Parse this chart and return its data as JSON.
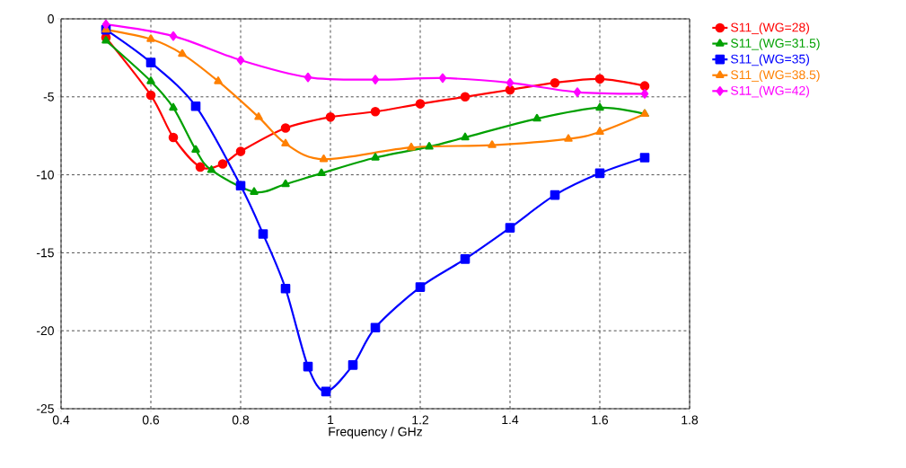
{
  "chart_data": {
    "type": "line",
    "xlabel": "Frequency / GHz",
    "xlim": [
      0.4,
      1.8
    ],
    "xticks": [
      0.4,
      0.6,
      0.8,
      1,
      1.2,
      1.4,
      1.6,
      1.8
    ],
    "ylim": [
      -25,
      0
    ],
    "yticks": [
      -25,
      -20,
      -15,
      -10,
      -5,
      0
    ],
    "grid": true,
    "legend": "top right",
    "series": [
      {
        "name": "S11_(WG=28)",
        "color": "#ff0000",
        "marker": "circle",
        "x": [
          0.5,
          0.6,
          0.65,
          0.71,
          0.76,
          0.8,
          0.9,
          1.0,
          1.1,
          1.2,
          1.3,
          1.4,
          1.5,
          1.6,
          1.7
        ],
        "values": [
          -1.2,
          -4.9,
          -7.6,
          -9.5,
          -9.3,
          -8.5,
          -7.0,
          -6.3,
          -5.95,
          -5.45,
          -5.0,
          -4.55,
          -4.1,
          -3.85,
          -4.3
        ]
      },
      {
        "name": "S11_(WG=31.5)",
        "color": "#00a000",
        "marker": "triangle",
        "x": [
          0.5,
          0.6,
          0.65,
          0.7,
          0.735,
          0.83,
          0.9,
          0.98,
          1.1,
          1.22,
          1.3,
          1.46,
          1.6,
          1.7
        ],
        "values": [
          -1.4,
          -4.0,
          -5.7,
          -8.4,
          -9.7,
          -11.1,
          -10.6,
          -9.9,
          -8.9,
          -8.2,
          -7.6,
          -6.4,
          -5.7,
          -6.1
        ]
      },
      {
        "name": "S11_(WG=35)",
        "color": "#0000ff",
        "marker": "square",
        "x": [
          0.5,
          0.6,
          0.7,
          0.8,
          0.85,
          0.9,
          0.95,
          0.99,
          1.05,
          1.1,
          1.2,
          1.3,
          1.4,
          1.5,
          1.6,
          1.7
        ],
        "values": [
          -0.7,
          -2.8,
          -5.6,
          -10.7,
          -13.8,
          -17.3,
          -22.3,
          -23.9,
          -22.2,
          -19.8,
          -17.2,
          -15.4,
          -13.4,
          -11.3,
          -9.9,
          -8.9
        ]
      },
      {
        "name": "S11_(WG=38.5)",
        "color": "#ff8000",
        "marker": "triangle",
        "x": [
          0.5,
          0.6,
          0.67,
          0.75,
          0.84,
          0.9,
          0.985,
          1.18,
          1.36,
          1.53,
          1.6,
          1.7
        ],
        "values": [
          -0.7,
          -1.3,
          -2.25,
          -4.0,
          -6.3,
          -8.0,
          -9.0,
          -8.25,
          -8.1,
          -7.7,
          -7.25,
          -6.1
        ]
      },
      {
        "name": "S11_(WG=42)",
        "color": "#ff00ff",
        "marker": "diamond",
        "x": [
          0.5,
          0.65,
          0.8,
          0.95,
          1.1,
          1.25,
          1.4,
          1.55,
          1.7
        ],
        "values": [
          -0.35,
          -1.1,
          -2.65,
          -3.75,
          -3.9,
          -3.8,
          -4.1,
          -4.7,
          -4.8
        ]
      }
    ]
  }
}
